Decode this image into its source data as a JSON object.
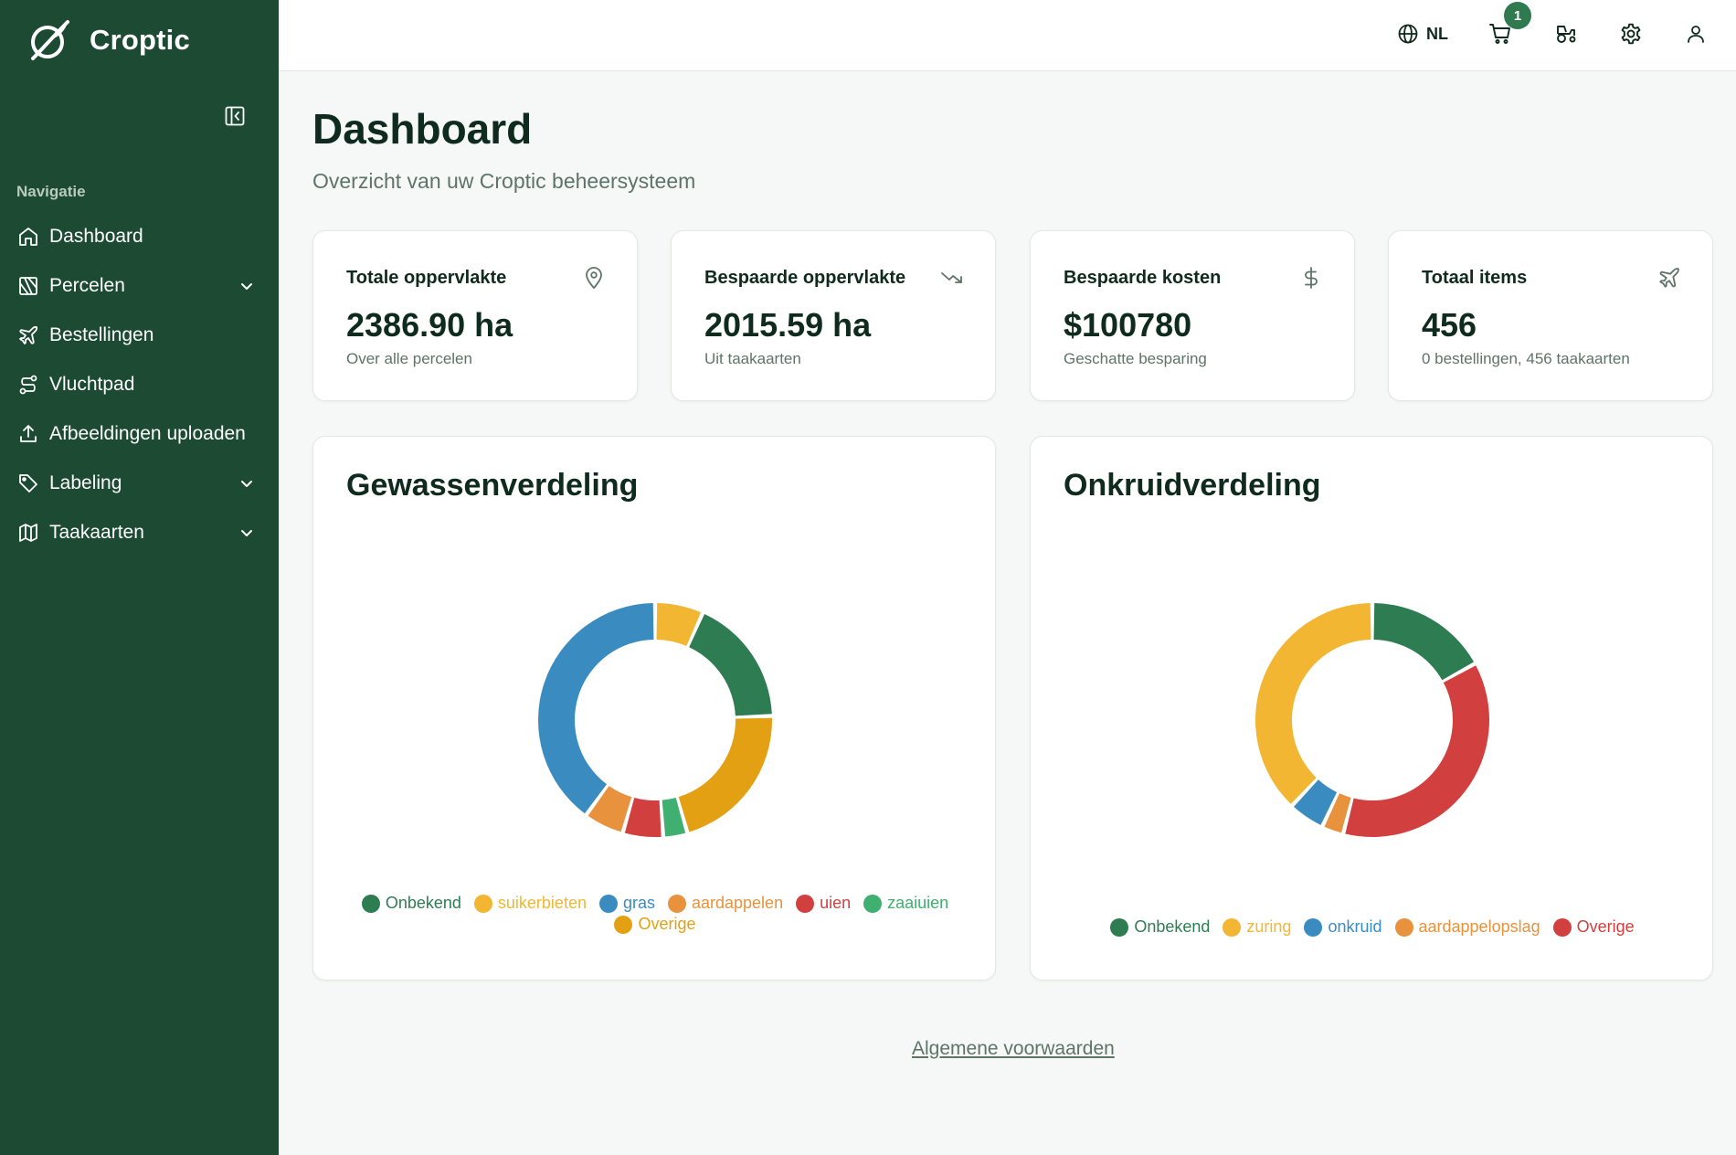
{
  "app": {
    "name": "Croptic"
  },
  "sidebar": {
    "heading": "Navigatie",
    "items": [
      {
        "label": "Dashboard",
        "icon": "home-icon",
        "expandable": false
      },
      {
        "label": "Percelen",
        "icon": "map-field-icon",
        "expandable": true
      },
      {
        "label": "Bestellingen",
        "icon": "plane-icon",
        "expandable": false
      },
      {
        "label": "Vluchtpad",
        "icon": "route-icon",
        "expandable": false
      },
      {
        "label": "Afbeeldingen uploaden",
        "icon": "upload-icon",
        "expandable": false
      },
      {
        "label": "Labeling",
        "icon": "tag-icon",
        "expandable": true
      },
      {
        "label": "Taakaarten",
        "icon": "map-icon",
        "expandable": true
      }
    ]
  },
  "topbar": {
    "language": "NL",
    "cart_count": "1"
  },
  "header": {
    "title": "Dashboard",
    "subtitle": "Overzicht van uw Croptic beheersysteem"
  },
  "stats": [
    {
      "title": "Totale oppervlakte",
      "value": "2386.90 ha",
      "sub": "Over alle percelen",
      "icon": "map-pin-icon"
    },
    {
      "title": "Bespaarde oppervlakte",
      "value": "2015.59 ha",
      "sub": "Uit taakaarten",
      "icon": "trending-down-icon"
    },
    {
      "title": "Bespaarde kosten",
      "value": "$100780",
      "sub": "Geschatte besparing",
      "icon": "dollar-icon"
    },
    {
      "title": "Totaal items",
      "value": "456",
      "sub": "0 bestellingen, 456 taakaarten",
      "icon": "plane-icon"
    }
  ],
  "chart_data": [
    {
      "type": "pie",
      "title": "Gewassenverdeling",
      "categories": [
        "Onbekend",
        "suikerbieten",
        "gras",
        "aardappelen",
        "uien",
        "zaaiuien",
        "Overige"
      ],
      "values": [
        16,
        6,
        36,
        5,
        5,
        3,
        19
      ],
      "slice_order": [
        "suikerbieten",
        "Onbekend",
        "Overige",
        "zaaiuien",
        "uien",
        "aardappelen",
        "gras"
      ],
      "colors": {
        "Onbekend": "#2e7d52",
        "suikerbieten": "#f2b632",
        "gras": "#3a8cc0",
        "aardappelen": "#e8923e",
        "uien": "#d23f3f",
        "zaaiuien": "#3fb06f",
        "Overige": "#e3a012"
      },
      "legend": "bottom",
      "donut": true
    },
    {
      "type": "pie",
      "title": "Onkruidverdeling",
      "categories": [
        "Onbekend",
        "zuring",
        "onkruid",
        "aardappelopslag",
        "Overige"
      ],
      "values": [
        17,
        38,
        5,
        3,
        37
      ],
      "slice_order": [
        "Onbekend",
        "Overige",
        "aardappelopslag",
        "onkruid",
        "zuring"
      ],
      "colors": {
        "Onbekend": "#2e7d52",
        "zuring": "#f2b632",
        "onkruid": "#3a8cc0",
        "aardappelopslag": "#e8923e",
        "Overige": "#d23f3f"
      },
      "legend": "bottom",
      "donut": true
    }
  ],
  "footer": {
    "link": "Algemene voorwaarden"
  }
}
